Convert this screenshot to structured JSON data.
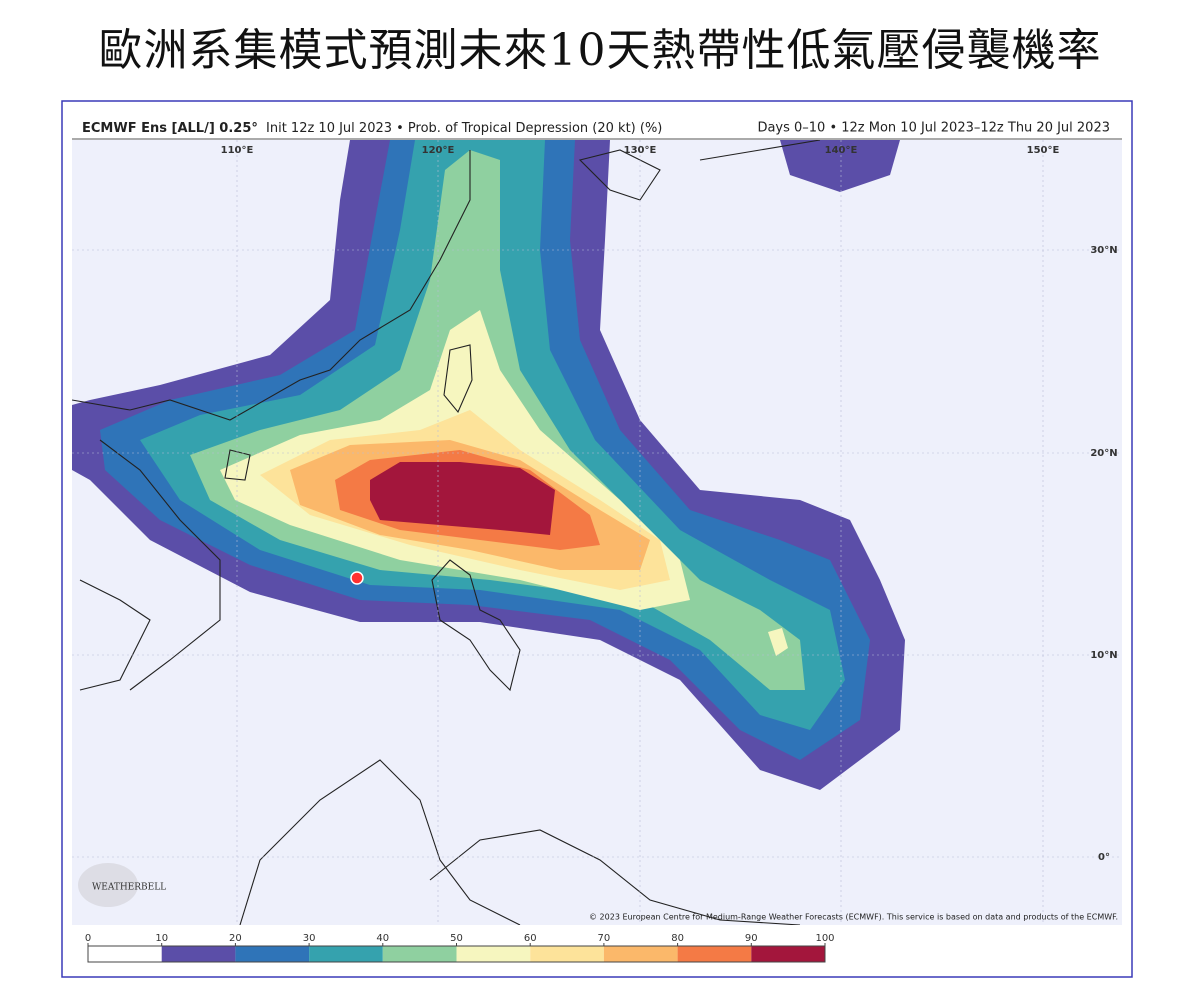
{
  "title": "歐洲系集模式預測未來10天熱帶性低氣壓侵襲機率",
  "map": {
    "header_model": "ECMWF Ens [ALL/] 0.25°",
    "header_info": "Init 12z 10 Jul 2023 • Prob. of Tropical Depression (20 kt) (%)",
    "header_period": "Days 0–10 • 12z Mon 10 Jul 2023–12z Thu 20 Jul 2023",
    "lon_labels": [
      "110°E",
      "120°E",
      "130°E",
      "140°E",
      "150°E"
    ],
    "lat_labels": [
      "30°N",
      "20°N",
      "10°N",
      "0°"
    ],
    "copyright": "© 2023 European Centre for Medium-Range Weather Forecasts (ECMWF). This service is based on data and products of the ECMWF.",
    "logo": "WEATHERBELL"
  },
  "colorbar": {
    "ticks": [
      0,
      10,
      20,
      30,
      40,
      50,
      60,
      70,
      80,
      90,
      100
    ],
    "colors": [
      "#ffffff",
      "#5b4ea8",
      "#2f74b8",
      "#35a2ae",
      "#8fd0a0",
      "#f6f6bf",
      "#fde39a",
      "#fbb86a",
      "#f47a45",
      "#a3163c"
    ]
  }
}
